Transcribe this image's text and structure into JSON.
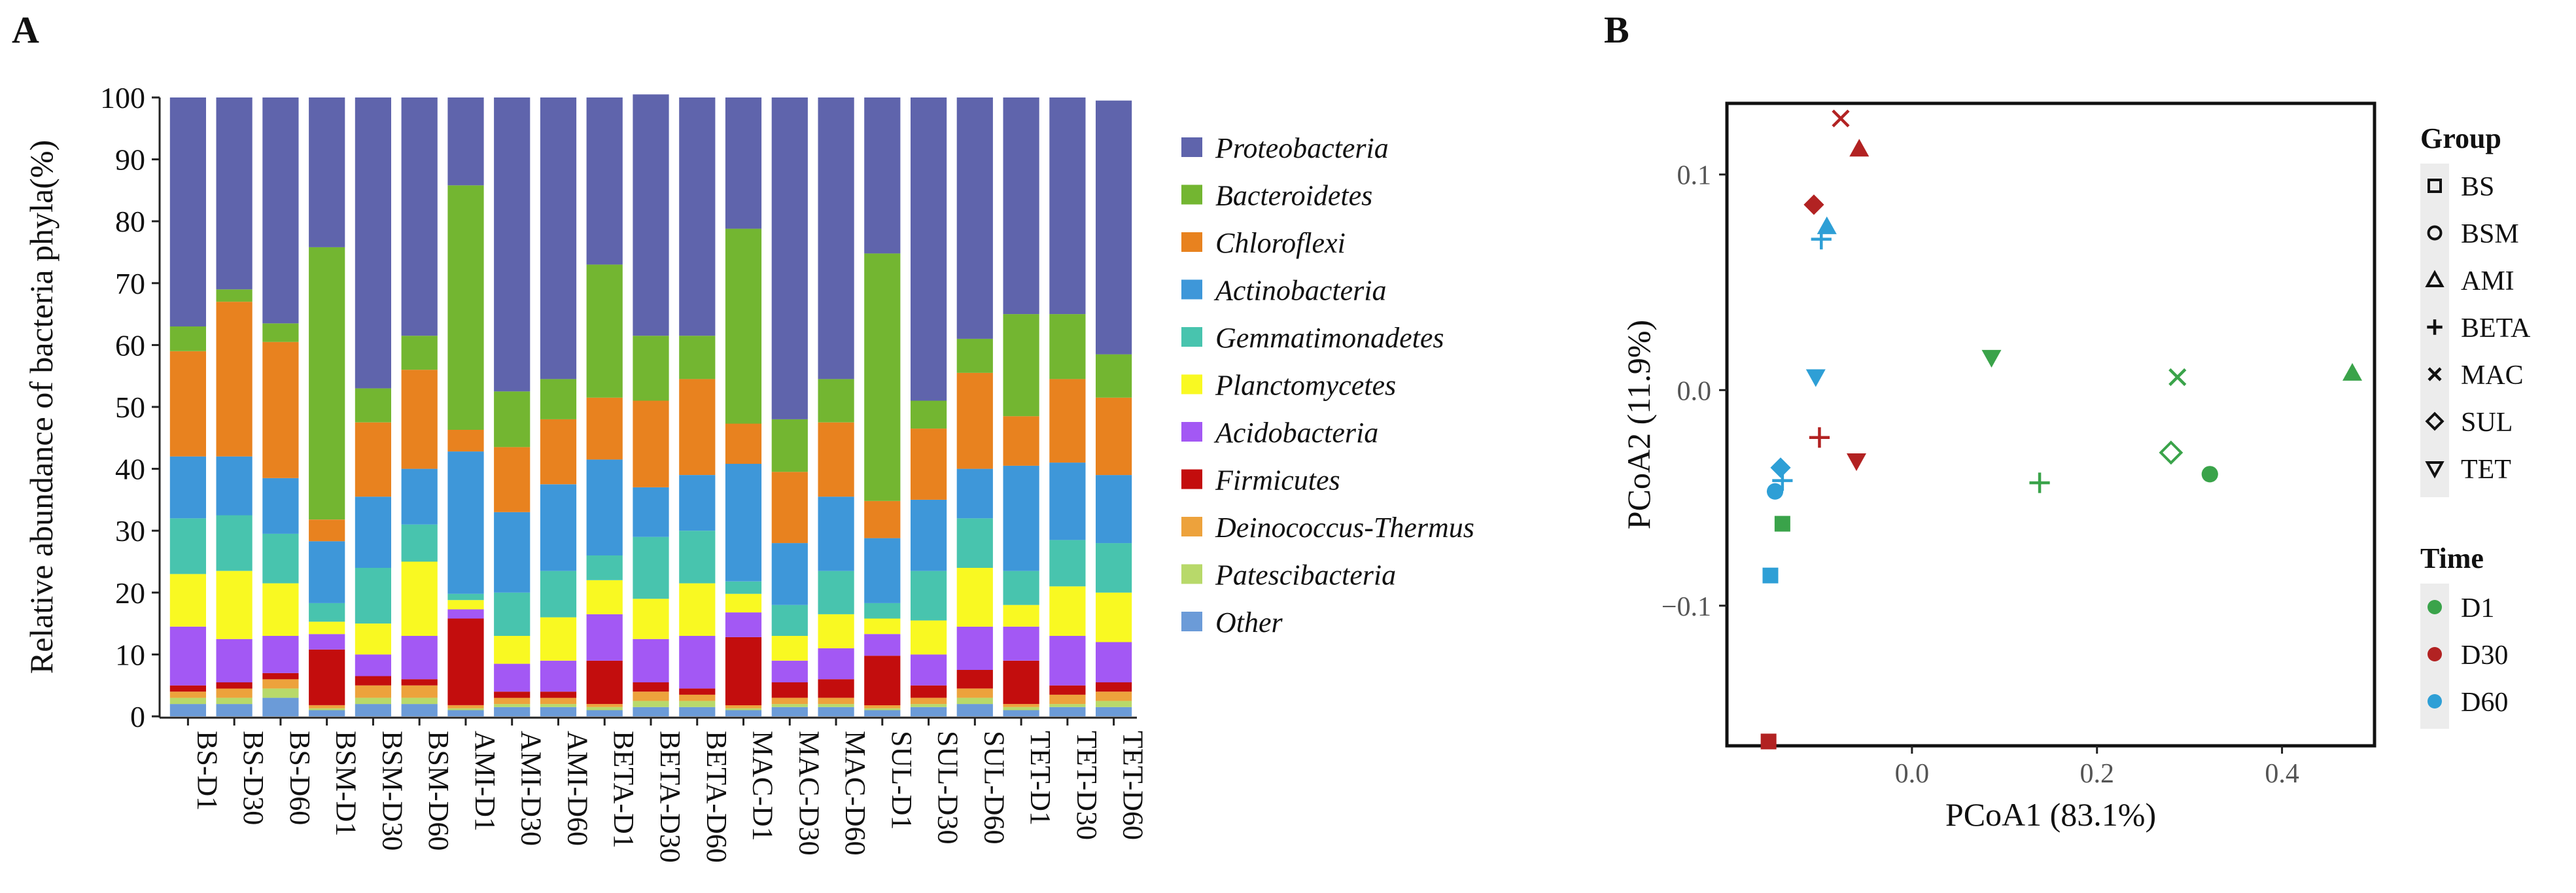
{
  "panel_a_label": "A",
  "panel_b_label": "B",
  "chart_data": [
    {
      "type": "stacked-bar",
      "title": "",
      "xlabel": "",
      "ylabel": "Relative abundance of bacteria phyla(%)",
      "ylim": [
        0,
        100
      ],
      "yticks": [
        "0",
        "10",
        "20",
        "30",
        "40",
        "50",
        "60",
        "70",
        "80",
        "90",
        "100"
      ],
      "categories": [
        "BS-D1",
        "BS-D30",
        "BS-D60",
        "BSM-D1",
        "BSM-D30",
        "BSM-D60",
        "AMI-D1",
        "AMI-D30",
        "AMI-D60",
        "BETA-D1",
        "BETA-D30",
        "BETA-D60",
        "MAC-D1",
        "MAC-D30",
        "MAC-D60",
        "SUL-D1",
        "SUL-D30",
        "SUL-D60",
        "TET-D1",
        "TET-D30",
        "TET-D60"
      ],
      "series": [
        {
          "name": "Other",
          "color": "#6b9bd8",
          "values": [
            2,
            2,
            3,
            1,
            2,
            2,
            1,
            1.5,
            1.5,
            1,
            1.5,
            1.5,
            1,
            1.5,
            1.5,
            1,
            1.5,
            2,
            1,
            1.5,
            1.5
          ]
        },
        {
          "name": "Patescibacteria",
          "color": "#b8d96a",
          "values": [
            1,
            1,
            1.5,
            0.3,
            1,
            1,
            0.3,
            0.5,
            0.5,
            0.5,
            1,
            1,
            0.3,
            0.5,
            0.5,
            0.3,
            0.5,
            1,
            0.5,
            0.5,
            1
          ]
        },
        {
          "name": "Deinococcus-Thermus",
          "color": "#eda23c",
          "values": [
            1,
            1.5,
            1.5,
            0.5,
            2,
            2,
            0.5,
            1,
            1,
            0.5,
            1.5,
            1,
            0.5,
            1,
            1,
            0.5,
            1,
            1.5,
            0.5,
            1.5,
            1.5
          ]
        },
        {
          "name": "Firmicutes",
          "color": "#c30d0d",
          "values": [
            1,
            1,
            1,
            9,
            1.5,
            1,
            14,
            1,
            1,
            7,
            1.5,
            1,
            11,
            2.5,
            3,
            8,
            2,
            3,
            7,
            1.5,
            1.5
          ]
        },
        {
          "name": "Acidobacteria",
          "color": "#a358f4",
          "values": [
            9.5,
            7,
            6,
            2.5,
            3.5,
            7,
            1.5,
            4.5,
            5,
            7.5,
            7,
            8.5,
            4,
            3.5,
            5,
            3.5,
            5,
            7,
            5.5,
            8,
            6.5
          ]
        },
        {
          "name": "Planctomycetes",
          "color": "#f9f922",
          "values": [
            8.5,
            11,
            8.5,
            2,
            5,
            12,
            1.5,
            4.5,
            7,
            5.5,
            6.5,
            8.5,
            3,
            4,
            5.5,
            2.5,
            5.5,
            9.5,
            3.5,
            8,
            8
          ]
        },
        {
          "name": "Gemmatimonadetes",
          "color": "#48c4ae",
          "values": [
            9,
            9,
            8,
            3,
            9,
            6,
            1,
            7,
            7.5,
            4,
            10,
            8.5,
            2,
            5,
            7,
            2.5,
            8,
            8,
            5.5,
            7.5,
            8
          ]
        },
        {
          "name": "Actinobacteria",
          "color": "#3e97d9",
          "values": [
            10,
            9.5,
            9,
            10,
            11.5,
            9,
            23,
            13,
            14,
            15.5,
            8,
            9,
            19,
            10,
            12,
            10.5,
            11.5,
            8,
            17,
            12.5,
            11
          ]
        },
        {
          "name": "Chloroflexi",
          "color": "#e8821f",
          "values": [
            17,
            25,
            22,
            3.5,
            12,
            16,
            3.5,
            10.5,
            10.5,
            10,
            14,
            15.5,
            6.5,
            11.5,
            12,
            6,
            11.5,
            15.5,
            8,
            13.5,
            12.5
          ]
        },
        {
          "name": "Bacteroidetes",
          "color": "#73b631",
          "values": [
            4,
            2,
            3,
            44,
            5.5,
            5.5,
            39.5,
            9,
            6.5,
            21.5,
            10.5,
            7,
            31.5,
            8.5,
            7,
            40,
            4.5,
            5.5,
            16.5,
            10.5,
            7
          ]
        },
        {
          "name": "Proteobacteria",
          "color": "#5f64ac",
          "values": [
            37,
            31,
            36.5,
            24.2,
            47,
            38.5,
            14.2,
            47.5,
            45.5,
            27,
            39,
            38.5,
            21.2,
            52,
            45.5,
            25.2,
            49,
            39,
            35,
            35,
            41
          ]
        }
      ],
      "legend": [
        "Proteobacteria",
        "Bacteroidetes",
        "Chloroflexi",
        "Actinobacteria",
        "Gemmatimonadetes",
        "Planctomycetes",
        "Acidobacteria",
        "Firmicutes",
        "Deinococcus-Thermus",
        "Patescibacteria",
        "Other"
      ],
      "legend_placement": "right"
    },
    {
      "type": "scatter",
      "title": "",
      "xlabel": "PCoA1 (83.1%)",
      "ylabel": "PCoA2 (11.9%)",
      "xlim": [
        -0.2,
        0.5
      ],
      "ylim": [
        -0.165,
        0.133
      ],
      "xticks": [
        0.0,
        0.2,
        0.4
      ],
      "xtick_labels": [
        "0.0",
        "0.2",
        "0.4"
      ],
      "yticks": [
        -0.1,
        0.0,
        0.1
      ],
      "ytick_labels": [
        "−0.1",
        "0.0",
        "0.1"
      ],
      "group_legend_title": "Group",
      "groups": [
        {
          "name": "BS",
          "shape": "square"
        },
        {
          "name": "BSM",
          "shape": "circle"
        },
        {
          "name": "AMI",
          "shape": "triangle"
        },
        {
          "name": "BETA",
          "shape": "plus"
        },
        {
          "name": "MAC",
          "shape": "cross"
        },
        {
          "name": "SUL",
          "shape": "diamond"
        },
        {
          "name": "TET",
          "shape": "triangle-down"
        }
      ],
      "time_legend_title": "Time",
      "times": [
        {
          "name": "D1",
          "color": "#3aa34a"
        },
        {
          "name": "D30",
          "color": "#b22222"
        },
        {
          "name": "D60",
          "color": "#2e9fd6"
        }
      ],
      "points": [
        {
          "group": "BS",
          "time": "D1",
          "x": -0.14,
          "y": -0.062
        },
        {
          "group": "BS",
          "time": "D30",
          "x": -0.155,
          "y": -0.163
        },
        {
          "group": "BS",
          "time": "D60",
          "x": -0.153,
          "y": -0.086
        },
        {
          "group": "BSM",
          "time": "D1",
          "x": 0.322,
          "y": -0.039
        },
        {
          "group": "BSM",
          "time": "D60",
          "x": -0.148,
          "y": -0.047
        },
        {
          "group": "AMI",
          "time": "D1",
          "x": 0.476,
          "y": 0.008
        },
        {
          "group": "AMI",
          "time": "D30",
          "x": -0.057,
          "y": 0.112
        },
        {
          "group": "AMI",
          "time": "D60",
          "x": -0.092,
          "y": 0.076
        },
        {
          "group": "BETA",
          "time": "D1",
          "x": 0.138,
          "y": -0.043
        },
        {
          "group": "BETA",
          "time": "D30",
          "x": -0.1,
          "y": -0.022
        },
        {
          "group": "BETA",
          "time": "D60",
          "x": -0.098,
          "y": 0.07
        },
        {
          "group": "BETA",
          "time": "D60",
          "x": -0.14,
          "y": -0.042
        },
        {
          "group": "MAC",
          "time": "D1",
          "x": 0.287,
          "y": 0.006
        },
        {
          "group": "MAC",
          "time": "D30",
          "x": -0.077,
          "y": 0.126
        },
        {
          "group": "SUL",
          "time": "D1",
          "x": 0.28,
          "y": -0.029
        },
        {
          "group": "SUL",
          "time": "D30",
          "x": -0.106,
          "y": 0.086
        },
        {
          "group": "SUL",
          "time": "D60",
          "x": -0.142,
          "y": -0.036
        },
        {
          "group": "TET",
          "time": "D1",
          "x": 0.086,
          "y": 0.015
        },
        {
          "group": "TET",
          "time": "D30",
          "x": -0.06,
          "y": -0.033
        },
        {
          "group": "TET",
          "time": "D60",
          "x": -0.104,
          "y": 0.006
        }
      ],
      "grid": false
    }
  ]
}
